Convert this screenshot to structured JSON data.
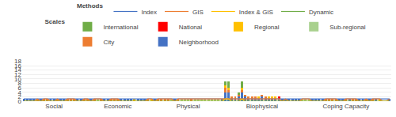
{
  "chart_data": {
    "type": "bar",
    "stacked": true,
    "grid": true,
    "annotations": [
      "Methods",
      "Scales"
    ],
    "categories": [
      null,
      null,
      null,
      null,
      null,
      null,
      null,
      null,
      null,
      "Social",
      null,
      null,
      null,
      null,
      null,
      null,
      null,
      null,
      null,
      null,
      null,
      null,
      null,
      null,
      null,
      null,
      null,
      null,
      "Economic",
      null,
      null,
      null,
      null,
      null,
      null,
      null,
      null,
      null,
      null,
      null,
      null,
      null,
      null,
      null,
      null,
      null,
      null,
      null,
      null,
      "Physical",
      null,
      null,
      null,
      null,
      null,
      null,
      null,
      null,
      null,
      null,
      null,
      null,
      null,
      null,
      null,
      null,
      null,
      null,
      null,
      null,
      null,
      "Biophysical",
      null,
      null,
      null,
      null,
      null,
      null,
      null,
      null,
      null,
      null,
      null,
      null,
      null,
      null,
      null,
      null,
      null,
      null,
      null,
      null,
      null,
      null,
      null,
      null,
      "Coping Capacity",
      null,
      null,
      null,
      null,
      null,
      null,
      null,
      null,
      null,
      null,
      null,
      null,
      null
    ],
    "ylim": [
      0,
      18
    ],
    "yticks": [
      0,
      2,
      4,
      6,
      8,
      10,
      12,
      14,
      16,
      18
    ],
    "series": [
      {
        "name": "Neighborhood",
        "type": "bar",
        "color": "#4472C4",
        "values": [
          1,
          1,
          1,
          1,
          0,
          1,
          0,
          0,
          1,
          1,
          0,
          1,
          1,
          0,
          0,
          0,
          1,
          1,
          0,
          0,
          1,
          0,
          0,
          0,
          1,
          1,
          0,
          0,
          0,
          1,
          1,
          1,
          1,
          0,
          1,
          1,
          1,
          0,
          0,
          1,
          0,
          0,
          0,
          0,
          0,
          1,
          0,
          0,
          0,
          0,
          0,
          0,
          0,
          0,
          0,
          0,
          0,
          0,
          0,
          1,
          4,
          4,
          1,
          1,
          2,
          4,
          2,
          1,
          1,
          1,
          1,
          2,
          1,
          1,
          1,
          1,
          1,
          1,
          1,
          1,
          1,
          1,
          1,
          0,
          0,
          0,
          1,
          1,
          1,
          1,
          0,
          0,
          0,
          0,
          1,
          1,
          0,
          1,
          0,
          0,
          1,
          1,
          0,
          1,
          0,
          1,
          0,
          0,
          0,
          1
        ]
      },
      {
        "name": "City",
        "type": "bar",
        "color": "#ED7D31",
        "values": [
          0,
          0,
          0,
          0,
          1,
          0,
          1,
          1,
          0,
          0,
          1,
          0,
          0,
          1,
          1,
          1,
          0,
          0,
          1,
          1,
          0,
          1,
          0,
          1,
          0,
          0,
          1,
          1,
          1,
          0,
          0,
          0,
          0,
          0,
          0,
          0,
          0,
          1,
          0,
          0,
          1,
          1,
          1,
          1,
          0,
          0,
          1,
          0,
          0,
          0,
          1,
          0,
          0,
          0,
          0,
          0,
          0,
          0,
          0,
          0,
          2,
          1,
          1,
          1,
          1,
          1,
          1,
          1,
          1,
          1,
          0,
          1,
          1,
          0,
          0,
          0,
          0,
          0,
          0,
          0,
          0,
          0,
          0,
          0,
          0,
          0,
          0,
          0,
          0,
          0,
          1,
          1,
          1,
          1,
          0,
          0,
          1,
          0,
          1,
          1,
          0,
          0,
          1,
          0,
          1,
          0,
          0,
          0,
          0,
          0
        ]
      },
      {
        "name": "Sub-regional",
        "type": "bar",
        "color": "#A9D18E",
        "values": [
          0,
          0,
          0,
          0,
          0,
          0,
          0,
          0,
          0,
          0,
          0,
          0,
          0,
          0,
          0,
          0,
          0,
          0,
          0,
          0,
          0,
          0,
          1,
          0,
          0,
          0,
          0,
          0,
          0,
          0,
          0,
          0,
          0,
          0,
          0,
          0,
          0,
          0,
          0,
          0,
          0,
          0,
          0,
          0,
          1,
          0,
          0,
          1,
          1,
          1,
          0,
          1,
          1,
          1,
          1,
          1,
          1,
          1,
          1,
          0,
          0,
          0,
          0,
          0,
          0,
          0,
          0,
          0,
          0,
          0,
          0,
          0,
          0,
          0,
          0,
          0,
          0,
          0,
          0,
          0,
          0,
          0,
          0,
          1,
          1,
          1,
          0,
          0,
          0,
          0,
          0,
          0,
          0,
          0,
          0,
          0,
          0,
          0,
          0,
          0,
          0,
          0,
          0,
          0,
          0,
          0,
          0,
          0,
          0,
          0
        ]
      },
      {
        "name": "Regional",
        "type": "bar",
        "color": "#FFC000",
        "values": [
          0,
          0,
          0,
          0,
          0,
          0,
          0,
          0,
          0,
          0,
          0,
          0,
          0,
          0,
          0,
          0,
          0,
          0,
          0,
          0,
          0,
          0,
          0,
          0,
          0,
          0,
          0,
          0,
          0,
          0,
          0,
          0,
          0,
          1,
          0,
          0,
          0,
          0,
          1,
          0,
          0,
          0,
          0,
          0,
          0,
          0,
          0,
          0,
          0,
          0,
          0,
          0,
          0,
          0,
          0,
          0,
          0,
          0,
          0,
          0,
          1,
          1,
          0,
          0,
          0,
          1,
          0,
          0,
          0,
          0,
          1,
          0,
          0,
          1,
          1,
          1,
          0,
          0,
          0,
          0,
          0,
          0,
          0,
          0,
          0,
          0,
          0,
          0,
          0,
          0,
          0,
          0,
          0,
          0,
          0,
          0,
          0,
          0,
          0,
          0,
          0,
          0,
          0,
          0,
          0,
          0,
          1,
          0,
          0,
          0
        ]
      },
      {
        "name": "National",
        "type": "bar",
        "color": "#FF0000",
        "values": [
          0,
          0,
          0,
          0,
          0,
          0,
          0,
          0,
          0,
          0,
          0,
          0,
          0,
          0,
          0,
          0,
          0,
          0,
          0,
          0,
          0,
          0,
          0,
          0,
          0,
          0,
          0,
          0,
          0,
          0,
          0,
          0,
          0,
          0,
          0,
          0,
          0,
          0,
          0,
          0,
          0,
          0,
          0,
          0,
          0,
          0,
          0,
          0,
          0,
          0,
          0,
          0,
          0,
          0,
          0,
          0,
          0,
          0,
          0,
          0,
          0,
          0,
          0,
          0,
          0,
          0,
          0,
          0,
          0,
          0,
          0,
          0,
          0,
          0,
          0,
          0,
          1,
          0,
          0,
          0,
          0,
          0,
          0,
          0,
          0,
          0,
          0,
          0,
          0,
          0,
          0,
          0,
          0,
          0,
          0,
          0,
          0,
          0,
          0,
          0,
          0,
          0,
          0,
          0,
          0,
          0,
          0,
          0,
          0,
          0
        ]
      },
      {
        "name": "International",
        "type": "bar",
        "color": "#70AD47",
        "values": [
          0,
          0,
          0,
          0,
          0,
          0,
          0,
          0,
          0,
          0,
          0,
          0,
          0,
          0,
          0,
          0,
          0,
          0,
          0,
          0,
          0,
          0,
          0,
          0,
          0,
          0,
          0,
          0,
          0,
          0,
          0,
          0,
          0,
          0,
          0,
          0,
          0,
          0,
          0,
          0,
          0,
          0,
          0,
          0,
          0,
          0,
          0,
          0,
          0,
          0,
          0,
          0,
          0,
          0,
          0,
          0,
          0,
          0,
          0,
          0,
          2,
          3,
          0,
          0,
          1,
          3,
          0,
          0,
          0,
          0,
          0,
          0,
          0,
          0,
          0,
          0,
          0,
          0,
          0,
          0,
          0,
          0,
          0,
          0,
          0,
          0,
          0,
          0,
          0,
          0,
          0,
          0,
          0,
          0,
          0,
          0,
          0,
          0,
          0,
          0,
          0,
          0,
          0,
          0,
          0,
          0,
          0,
          0,
          0,
          0
        ]
      },
      {
        "name": "Index",
        "type": "line",
        "color": "#4472C4",
        "values": [
          1,
          1,
          1,
          1,
          1,
          1,
          1,
          1,
          1,
          1,
          1,
          1,
          1,
          1,
          1,
          1,
          1,
          1,
          1,
          1,
          1,
          1,
          1,
          1,
          1,
          1,
          1,
          1,
          1,
          1,
          1,
          1,
          1,
          1,
          1,
          1,
          1,
          1,
          1,
          1,
          1,
          1,
          1,
          1,
          1,
          1,
          1,
          1,
          1,
          1,
          1,
          1,
          1,
          1,
          1,
          1,
          1,
          1,
          1,
          1,
          1,
          1,
          1,
          1,
          1,
          1,
          1,
          1,
          1,
          1,
          1,
          1,
          1,
          1,
          1,
          1,
          1,
          1,
          1,
          1,
          1,
          1,
          1,
          1,
          1,
          1,
          1,
          1,
          1,
          1,
          1,
          1,
          1,
          1,
          1,
          1,
          1,
          1,
          1,
          1,
          1,
          1,
          1,
          1,
          1,
          1,
          1,
          1,
          1,
          1
        ]
      },
      {
        "name": "GIS",
        "type": "line",
        "color": "#ED7D31",
        "values": [
          0,
          0,
          0,
          0,
          1,
          0,
          1,
          1,
          0,
          0,
          1,
          0,
          0,
          1,
          1,
          1,
          0,
          0,
          1,
          1,
          0,
          1,
          1,
          1,
          0,
          0,
          1,
          1,
          1,
          0,
          0,
          0,
          0,
          0,
          0,
          0,
          0,
          1,
          1,
          0,
          1,
          1,
          1,
          1,
          1,
          0,
          1,
          1,
          1,
          1,
          1,
          1,
          1,
          1,
          1,
          1,
          1,
          1,
          1,
          1,
          1,
          1,
          1,
          1,
          1,
          1,
          1,
          1,
          1,
          1,
          1,
          1,
          1,
          1,
          1,
          1,
          1,
          0,
          1,
          0,
          0,
          0,
          0,
          1,
          1,
          1,
          0,
          0,
          0,
          0,
          1,
          1,
          1,
          1,
          0,
          0,
          1,
          1,
          1,
          1,
          0,
          0,
          1,
          0,
          1,
          1,
          1,
          0,
          0,
          1
        ]
      },
      {
        "name": "Index & GIS",
        "type": "line",
        "color": "#FFC000",
        "values": [
          0,
          0,
          0,
          0,
          0,
          0,
          0,
          0,
          0,
          0,
          0,
          0,
          0,
          0,
          0,
          0,
          0,
          0,
          0,
          0,
          0,
          0,
          0,
          0,
          0,
          0,
          0,
          0,
          0,
          0,
          0,
          0,
          0,
          0,
          0,
          0,
          0,
          0,
          0,
          0,
          0,
          0,
          0,
          0,
          0,
          0,
          0,
          0,
          0,
          0,
          0,
          0,
          0,
          0,
          0,
          0,
          0,
          0,
          0,
          0,
          1,
          1,
          0,
          0,
          0,
          1,
          0,
          0,
          0,
          0,
          0,
          0,
          0,
          0,
          0,
          0,
          0,
          0,
          0,
          0,
          0,
          0,
          0,
          0,
          0,
          0,
          0,
          0,
          0,
          0,
          0,
          0,
          0,
          0,
          0,
          0,
          0,
          0,
          0,
          0,
          0,
          0,
          0,
          0,
          0,
          0,
          0,
          0,
          0,
          0
        ]
      },
      {
        "name": "Dynamic",
        "type": "line",
        "color": "#70AD47",
        "values": [
          0,
          0,
          0,
          0,
          0,
          0,
          0,
          0,
          0,
          0,
          0,
          0,
          0,
          0,
          0,
          0,
          0,
          0,
          0,
          0,
          0,
          0,
          0,
          0,
          0,
          0,
          0,
          0,
          0,
          0,
          0,
          0,
          0,
          0,
          0,
          0,
          0,
          0,
          0,
          0,
          0,
          0,
          0,
          0,
          0,
          0,
          0,
          0,
          0,
          0,
          0,
          0,
          0,
          0,
          0,
          0,
          0,
          0,
          0,
          0,
          0,
          0,
          0,
          0,
          0,
          0,
          0,
          0,
          0,
          0,
          0,
          0,
          0,
          0,
          0,
          0,
          0,
          0,
          0,
          0,
          0,
          0,
          0,
          0,
          0,
          0,
          0,
          0,
          0,
          0,
          0,
          0,
          0,
          0,
          0,
          0,
          0,
          0,
          0,
          0,
          0,
          0,
          0,
          0,
          0,
          0,
          0,
          0,
          0,
          0
        ]
      }
    ]
  }
}
